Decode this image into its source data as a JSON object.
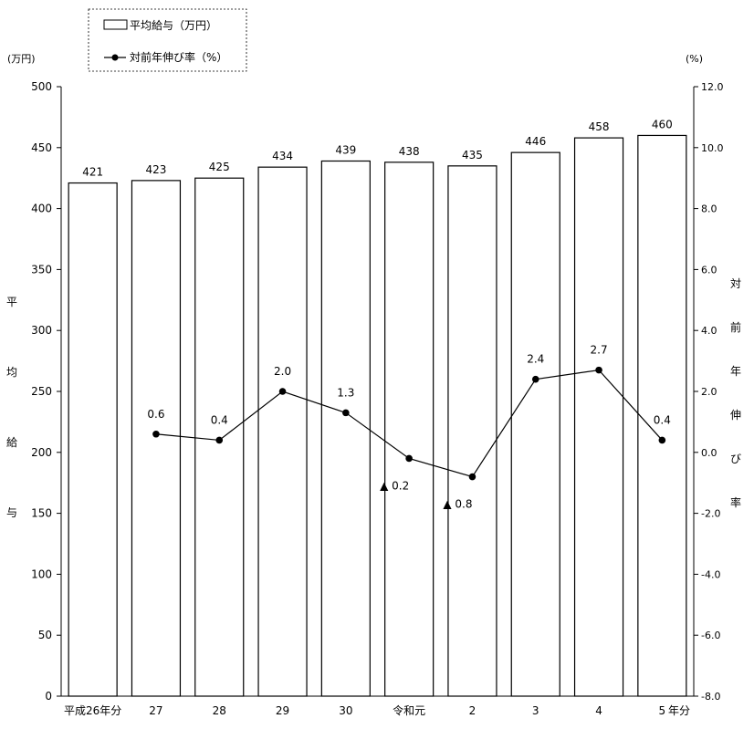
{
  "chart_data": {
    "type": "bar",
    "categories": [
      "平成26年分",
      "27",
      "28",
      "29",
      "30",
      "令和元",
      "2",
      "3",
      "4",
      "5"
    ],
    "x_suffix": "年分",
    "left_unit": "(万円)",
    "right_unit": "(%)",
    "left_axis_label": [
      "平",
      "均",
      "給",
      "与"
    ],
    "right_axis_label": [
      "対",
      "前",
      "年",
      "伸",
      "び",
      "率"
    ],
    "left_ylim": [
      0,
      500
    ],
    "left_ticks": [
      0,
      50,
      100,
      150,
      200,
      250,
      300,
      350,
      400,
      450,
      500
    ],
    "right_ylim": [
      -8,
      12
    ],
    "right_ticks": [
      "-8.0",
      "-6.0",
      "-4.0",
      "-2.0",
      "0.0",
      "2.0",
      "4.0",
      "6.0",
      "8.0",
      "10.0",
      "12.0"
    ],
    "legend": {
      "placement": "top-left",
      "bar_label": "平均給与（万円）",
      "line_label": "対前年伸び率（%）"
    },
    "series": [
      {
        "name": "平均給与（万円）",
        "type": "bar",
        "axis": "left",
        "values": [
          421,
          423,
          425,
          434,
          439,
          438,
          435,
          446,
          458,
          460
        ],
        "labels": [
          "421",
          "423",
          "425",
          "434",
          "439",
          "438",
          "435",
          "446",
          "458",
          "460"
        ]
      },
      {
        "name": "対前年伸び率（%）",
        "type": "line",
        "axis": "right",
        "values": [
          null,
          0.6,
          0.4,
          2.0,
          1.3,
          -0.2,
          -0.8,
          2.4,
          2.7,
          0.4
        ],
        "labels": [
          null,
          "0.6",
          "0.4",
          "2.0",
          "1.3",
          "▲ 0.2",
          "▲ 0.8",
          "2.4",
          "2.7",
          "0.4"
        ]
      }
    ]
  }
}
